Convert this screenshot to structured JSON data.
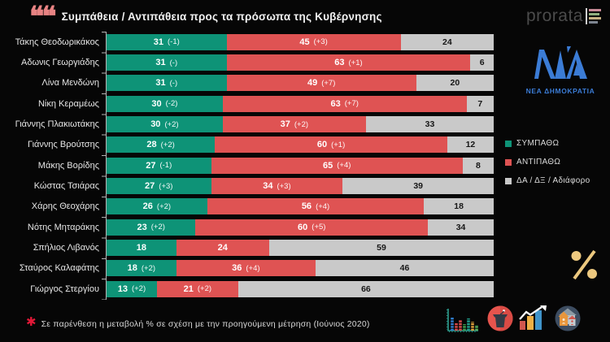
{
  "header": {
    "title": "Συμπάθεια / Αντιπάθεια προς τα πρόσωπα της Κυβέρνησης"
  },
  "branding": {
    "prorata": "prorata",
    "party_logo_text": "ΝΕΑ ΔΗΜΟΚΡΑΤΙΑ",
    "party_logo_color": "#3b7cd6"
  },
  "legend": {
    "items": [
      {
        "label": "ΣΥΜΠΑΘΩ",
        "color": "#0e9377"
      },
      {
        "label": "ΑΝΤΙΠΑΘΩ",
        "color": "#df5353"
      },
      {
        "label": "ΔΑ / ΔΞ / Αδιάφορο",
        "color": "#c9c9c9"
      }
    ]
  },
  "footnote": {
    "marker": "✱",
    "text": "Σε παρένθεση η μεταβολή % σε σχέση με την προηγούμενη μέτρηση (Ιούνιος 2020)"
  },
  "icons": {
    "quote": "opening-quotes",
    "percent_symbol": "%",
    "bottom_row": [
      "equalizer-bar-chart-icon",
      "podium-icon",
      "trending-up-bars-icon",
      "houses-icon"
    ]
  },
  "chart_data": {
    "type": "bar",
    "orientation": "horizontal",
    "stacked": true,
    "unit": "%",
    "x_range": [
      0,
      100
    ],
    "categories": [
      "Τάκης Θεοδωρικάκος",
      "Αδωνις Γεωργιάδης",
      "Λίνα Μενδώνη",
      "Νίκη Κεραμέως",
      "Γιάννης Πλακιωτάκης",
      "Γιάννης Βρούτσης",
      "Μάκης Βορίδης",
      "Κώστας Τσιάρας",
      "Χάρης Θεοχάρης",
      "Νότης Μηταράκης",
      "Σπήλιος Λιβανός",
      "Σταύρος Καλαφάτης",
      "Γιώργος Στεργίου"
    ],
    "series": [
      {
        "name": "ΣΥΜΠΑΘΩ",
        "color": "#0e9377",
        "values": [
          31,
          31,
          31,
          30,
          30,
          28,
          27,
          27,
          26,
          23,
          18,
          18,
          13
        ],
        "changes": [
          "(-1)",
          "(-)",
          "(-)",
          "(-2)",
          "(+2)",
          "(+2)",
          "(-1)",
          "(+3)",
          "(+2)",
          "(+2)",
          "",
          "(+2)",
          "(+2)"
        ]
      },
      {
        "name": "ΑΝΤΙΠΑΘΩ",
        "color": "#df5353",
        "values": [
          45,
          63,
          49,
          63,
          37,
          60,
          65,
          34,
          56,
          60,
          24,
          36,
          21
        ],
        "changes": [
          "(+3)",
          "(+1)",
          "(+7)",
          "(+7)",
          "(+2)",
          "(+1)",
          "(+4)",
          "(+3)",
          "(+4)",
          "(+5)",
          "",
          "(+4)",
          "(+2)"
        ]
      },
      {
        "name": "ΔΑ / ΔΞ / Αδιάφορο",
        "color": "#c9c9c9",
        "values": [
          24,
          6,
          20,
          7,
          33,
          12,
          8,
          39,
          18,
          34,
          59,
          46,
          66
        ]
      }
    ],
    "legend_position": "right",
    "grid": false
  }
}
